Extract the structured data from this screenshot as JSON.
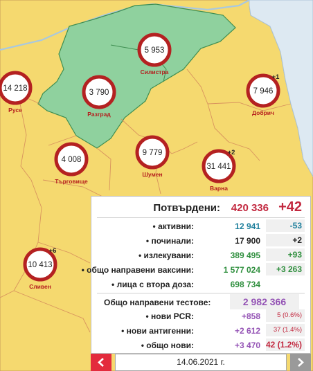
{
  "map": {
    "regions": [
      {
        "name": "Силистра",
        "cases": "5 953",
        "delta": "",
        "highlighted": true
      },
      {
        "name": "Русе",
        "cases": "14 218",
        "delta": "",
        "highlighted": false
      },
      {
        "name": "Разград",
        "cases": "3 790",
        "delta": "",
        "highlighted": true
      },
      {
        "name": "Добрич",
        "cases": "7 946",
        "delta": "+1",
        "highlighted": false
      },
      {
        "name": "Търговище",
        "cases": "4 008",
        "delta": "",
        "highlighted": false
      },
      {
        "name": "Шумен",
        "cases": "9 779",
        "delta": "",
        "highlighted": false
      },
      {
        "name": "Варна",
        "cases": "31 441",
        "delta": "+2",
        "highlighted": false
      },
      {
        "name": "Сливен",
        "cases": "10 413",
        "delta": "+6",
        "highlighted": false
      }
    ],
    "colors": {
      "land": "#f5d96f",
      "highlight": "#8fd19e",
      "sea": "#dde9f2",
      "bubble_ring": "#b42121",
      "label": "#b51d1d"
    }
  },
  "stats": {
    "confirmed_label": "Потвърдени:",
    "confirmed_value": "420 336",
    "confirmed_delta": "+42",
    "rows": [
      {
        "label": "• активни:",
        "value": "12 941",
        "delta": "-53"
      },
      {
        "label": "• починали:",
        "value": "17 900",
        "delta": "+2"
      },
      {
        "label": "• излекувани:",
        "value": "389 495",
        "delta": "+93"
      },
      {
        "label": "• общо направени ваксини:",
        "value": "1 577 024",
        "delta": "+3 263"
      },
      {
        "label": "• лица с втора доза:",
        "value": "698 734",
        "delta": ""
      }
    ],
    "tests_label": "Общо направени тестове:",
    "tests_value": "2 982 366",
    "test_rows": [
      {
        "label": "• нови PCR:",
        "value": "+858",
        "delta": "5 (0.6%)"
      },
      {
        "label": "• нови антигенни:",
        "value": "+2 612",
        "delta": "37 (1.4%)"
      },
      {
        "label": "• общо нови:",
        "value": "+3 470",
        "delta": "42 (1.2%)"
      }
    ]
  },
  "date_nav": {
    "date": "14.06.2021 г.",
    "prev_icon": "chevron-left-icon",
    "next_icon": "chevron-right-icon"
  }
}
